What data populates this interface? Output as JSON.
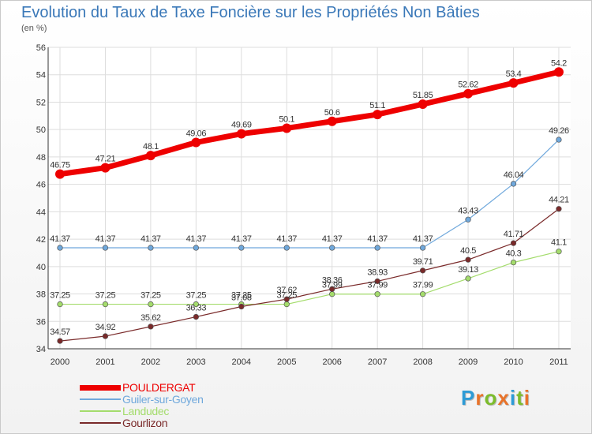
{
  "title": "Evolution du Taux de Taxe Foncière sur les Propriétés Non Bâties",
  "unit_label": "(en %)",
  "logo": {
    "letters": [
      "P",
      "r",
      "o",
      "x",
      "i",
      "t",
      "i"
    ],
    "colors": [
      "#2d9bd6",
      "#e8732a",
      "#7cbc2c",
      "#e8732a",
      "#2d9bd6",
      "#7cbc2c",
      "#e8732a"
    ]
  },
  "chart_data": {
    "type": "line",
    "x": [
      "2000",
      "2001",
      "2002",
      "2003",
      "2004",
      "2005",
      "2006",
      "2007",
      "2008",
      "2009",
      "2010",
      "2011"
    ],
    "yticks": [
      "34",
      "36",
      "38",
      "40",
      "42",
      "44",
      "46",
      "48",
      "50",
      "52",
      "54",
      "56"
    ],
    "ylim": [
      34,
      56
    ],
    "grid": true,
    "legend_position": "bottom-left",
    "series": [
      {
        "name": "POULDERGAT",
        "color": "#ee0000",
        "label_color": "#ee0000",
        "values": [
          46.75,
          47.21,
          48.1,
          49.06,
          49.69,
          50.1,
          50.6,
          51.1,
          51.85,
          52.62,
          53.4,
          54.2
        ],
        "labels": [
          "46.75",
          "47.21",
          "48.1",
          "49.06",
          "49.69",
          "50.1",
          "50.6",
          "51.1",
          "51.85",
          "52.62",
          "53.4",
          "54.2"
        ]
      },
      {
        "name": "Guiler-sur-Goyen",
        "color": "#6fa8dc",
        "label_color": "#6fa8dc",
        "values": [
          41.37,
          41.37,
          41.37,
          41.37,
          41.37,
          41.37,
          41.37,
          41.37,
          41.37,
          43.43,
          46.04,
          49.26
        ],
        "labels": [
          "41.37",
          "41.37",
          "41.37",
          "41.37",
          "41.37",
          "41.37",
          "41.37",
          "41.37",
          "41.37",
          "43.43",
          "46.04",
          "49.26"
        ]
      },
      {
        "name": "Landudec",
        "color": "#a4dc6c",
        "label_color": "#a4dc6c",
        "values": [
          37.25,
          37.25,
          37.25,
          37.25,
          37.25,
          37.25,
          37.99,
          37.99,
          37.99,
          39.13,
          40.3,
          41.1
        ],
        "labels": [
          "37.25",
          "37.25",
          "37.25",
          "37.25",
          "37.25",
          "37.25",
          "37.99",
          "37.99",
          "37.99",
          "39.13",
          "40.3",
          "41.1"
        ]
      },
      {
        "name": "Gourlizon",
        "color": "#7a2a2a",
        "label_color": "#7a2a2a",
        "values": [
          34.57,
          34.92,
          35.62,
          36.33,
          37.08,
          37.62,
          38.36,
          38.93,
          39.71,
          40.5,
          41.71,
          44.21
        ],
        "labels": [
          "34.57",
          "34.92",
          "35.62",
          "36.33",
          "37.08",
          "37.62",
          "38.36",
          "38.93",
          "39.71",
          "40.5",
          "41.71",
          "44.21"
        ]
      }
    ]
  }
}
